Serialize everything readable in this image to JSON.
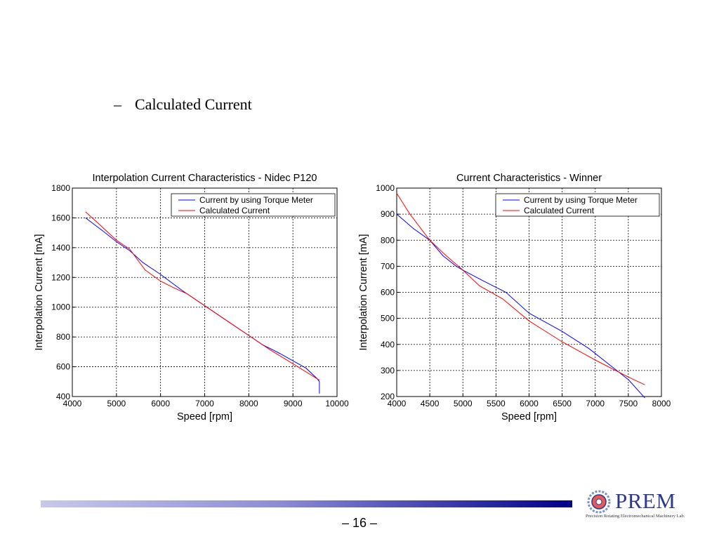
{
  "slide": {
    "heading_dash": "–",
    "heading": "Calculated Current",
    "page_number": "– 16 –"
  },
  "logo": {
    "name": "PREM",
    "subtitle": "Precision Rotating Electromechanical Machinery Lab.",
    "icon": "gear-logo-icon",
    "color": "#2b3a8c"
  },
  "footer": {
    "bar_gradient": [
      "#c8c8ec",
      "#000088"
    ]
  },
  "colors": {
    "series_blue": "#0000ff",
    "series_red": "#ff0000",
    "grid": "#000000"
  },
  "chart_data": [
    {
      "type": "line",
      "title": "Interpolation Current Characteristics - Nidec P120",
      "xlabel": "Speed [rpm]",
      "ylabel": "Interpolation Current [mA]",
      "xlim": [
        4000,
        10000
      ],
      "ylim": [
        400,
        1800
      ],
      "xticks": [
        4000,
        5000,
        6000,
        7000,
        8000,
        9000,
        10000
      ],
      "yticks": [
        400,
        600,
        800,
        1000,
        1200,
        1400,
        1600,
        1800
      ],
      "grid": true,
      "legend_position": "top-right",
      "series": [
        {
          "name": "Current by using Torque Meter",
          "color": "#0000ff",
          "x": [
            4300,
            4700,
            5000,
            5300,
            5600,
            6000,
            6500,
            7000,
            7500,
            8000,
            8300,
            8700,
            9000,
            9300,
            9550,
            9600,
            9600
          ],
          "y": [
            1600,
            1510,
            1440,
            1380,
            1300,
            1220,
            1110,
            1010,
            910,
            810,
            750,
            690,
            640,
            590,
            520,
            500,
            420
          ]
        },
        {
          "name": "Calculated Current",
          "color": "#ff0000",
          "x": [
            4300,
            4600,
            5000,
            5300,
            5650,
            6000,
            6300,
            6600,
            7000,
            7500,
            8000,
            8500,
            9000,
            9600
          ],
          "y": [
            1640,
            1560,
            1450,
            1390,
            1250,
            1175,
            1130,
            1090,
            1010,
            910,
            810,
            710,
            620,
            510
          ]
        }
      ]
    },
    {
      "type": "line",
      "title": "Current Characteristics - Winner",
      "xlabel": "Speed [rpm]",
      "ylabel": "Interpolation Current [mA]",
      "xlim": [
        4000,
        8000
      ],
      "ylim": [
        200,
        1000
      ],
      "xticks": [
        4000,
        4500,
        5000,
        5500,
        6000,
        6500,
        7000,
        7500,
        8000
      ],
      "yticks": [
        200,
        300,
        400,
        500,
        600,
        700,
        800,
        900,
        1000
      ],
      "grid": true,
      "legend_position": "top-right",
      "series": [
        {
          "name": "Current by using Torque Meter",
          "color": "#0000ff",
          "x": [
            4000,
            4250,
            4500,
            4700,
            4900,
            5000,
            5300,
            5650,
            6000,
            6500,
            6900,
            7000,
            7200,
            7500,
            7750
          ],
          "y": [
            900,
            845,
            800,
            740,
            700,
            685,
            645,
            600,
            520,
            450,
            385,
            365,
            325,
            265,
            195
          ]
        },
        {
          "name": "Calculated Current",
          "color": "#ff0000",
          "x": [
            4000,
            4200,
            4500,
            4750,
            5000,
            5250,
            5600,
            6000,
            6500,
            7000,
            7500,
            7750
          ],
          "y": [
            980,
            900,
            800,
            740,
            685,
            625,
            575,
            490,
            410,
            340,
            275,
            245
          ]
        }
      ]
    }
  ]
}
